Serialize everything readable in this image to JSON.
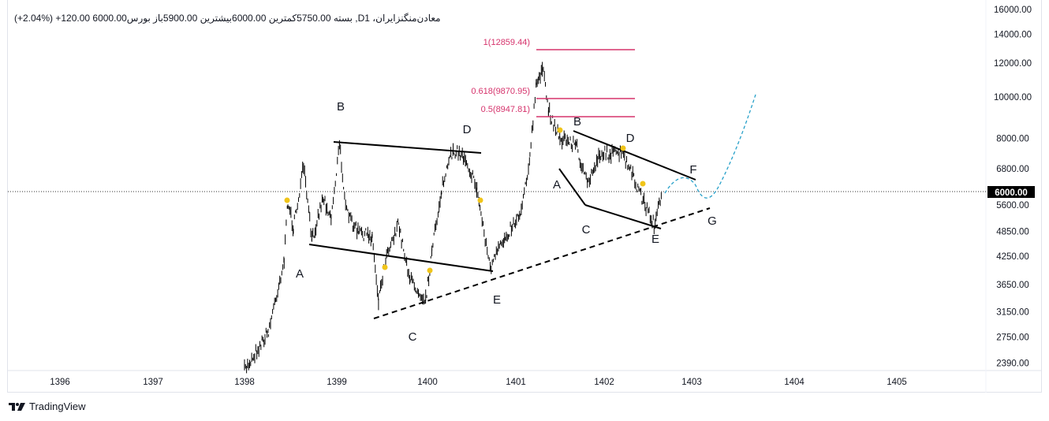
{
  "header": {
    "symbol_line": "(+2.04%) 120.00+  6000.00بسته  5750.00کمترین  6000.00بیشترین  5900.00باز  بورس ,Dمعادن‌منگنزایران، 1",
    "symbol": "معادن‌منگنزایران",
    "interval": "D",
    "exchange": "بورس",
    "open": "5900.00",
    "high": "6000.00",
    "low": "5750.00",
    "close": "6000.00",
    "change": "+120.00",
    "change_pct": "(+2.04%)"
  },
  "price_axis": {
    "ticks": [
      "16000.00",
      "14000.00",
      "12000.00",
      "10000.00",
      "8000.00",
      "6800.00",
      "6000.00",
      "5600.00",
      "4850.00",
      "4250.00",
      "3650.00",
      "3150.00",
      "2750.00",
      "2390.00"
    ],
    "current_price": "6000.00"
  },
  "time_axis": {
    "ticks": [
      "1396",
      "1397",
      "1398",
      "1399",
      "1400",
      "1401",
      "1402",
      "1403",
      "1404",
      "1405"
    ]
  },
  "fib_levels": [
    {
      "label": "1(12859.44)"
    },
    {
      "label": "0.618(9870.95)"
    },
    {
      "label": "0.5(8947.81)"
    }
  ],
  "wave_labels": [
    "A",
    "B",
    "D",
    "C",
    "E",
    "A",
    "B",
    "D",
    "C",
    "E",
    "F",
    "G"
  ],
  "branding": {
    "name": "TradingView"
  },
  "colors": {
    "fib": "#d6336c",
    "projection": "#26a0c9",
    "dots": "#f0c419",
    "price": "#000000"
  },
  "chart_data": {
    "type": "line",
    "title": "معادن‌منگنزایران, 1D",
    "scale": "log",
    "ylim": [
      2300,
      16000
    ],
    "x": [
      1398.0,
      1398.26,
      1398.43,
      1398.47,
      1398.53,
      1398.64,
      1398.73,
      1398.85,
      1398.94,
      1399.03,
      1399.11,
      1399.24,
      1399.39,
      1399.46,
      1399.55,
      1399.68,
      1399.81,
      1399.98,
      1400.05,
      1400.16,
      1400.29,
      1400.43,
      1400.56,
      1400.71,
      1400.88,
      1401.05,
      1401.16,
      1401.23,
      1401.3,
      1401.37,
      1401.5,
      1401.68,
      1401.81,
      1401.95,
      1402.21,
      1402.35,
      1402.57,
      1402.66
    ],
    "y": [
      2300,
      2840,
      4160,
      5710,
      4930,
      6860,
      4620,
      5840,
      5250,
      7750,
      5360,
      4820,
      4720,
      3370,
      4340,
      5030,
      3740,
      3370,
      4340,
      6090,
      7530,
      7210,
      6090,
      3990,
      4720,
      5360,
      7210,
      10560,
      11740,
      9300,
      8020,
      7750,
      6220,
      7370,
      7370,
      6350,
      5030,
      5840
    ]
  }
}
